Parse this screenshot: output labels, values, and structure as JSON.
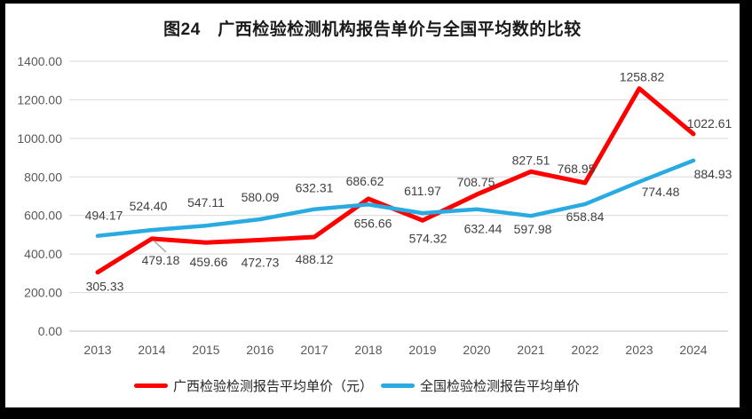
{
  "chart_data": {
    "type": "line",
    "title": "图24　广西检验检测机构报告单价与全国平均数的比较",
    "xlabel": "",
    "ylabel": "",
    "x": [
      "2013",
      "2014",
      "2015",
      "2016",
      "2017",
      "2018",
      "2019",
      "2020",
      "2021",
      "2022",
      "2023",
      "2024"
    ],
    "series": [
      {
        "name": "广西检验检测报告平均单价（元）",
        "color": "#FF0000",
        "stroke_width": 5,
        "values": [
          305.33,
          479.18,
          459.66,
          472.73,
          488.12,
          686.62,
          574.32,
          708.75,
          827.51,
          768.95,
          1258.82,
          1022.61
        ],
        "label_offsets": [
          [
            8,
            21
          ],
          [
            10,
            29
          ],
          [
            3,
            27
          ],
          [
            0,
            30
          ],
          [
            0,
            30
          ],
          [
            -4,
            -15
          ],
          [
            6,
            25
          ],
          [
            -1,
            -9
          ],
          [
            0,
            -8
          ],
          [
            -10,
            -11
          ],
          [
            3,
            -8
          ],
          [
            18,
            -7
          ]
        ]
      },
      {
        "name": "全国检验检测报告平均单价",
        "color": "#29ABE2",
        "stroke_width": 4.5,
        "values": [
          494.17,
          524.4,
          547.11,
          580.09,
          632.31,
          656.66,
          611.97,
          632.44,
          597.98,
          658.84,
          774.48,
          884.93
        ],
        "label_offsets": [
          [
            7,
            -18
          ],
          [
            -4,
            -22
          ],
          [
            0,
            -21
          ],
          [
            0,
            -20
          ],
          [
            0,
            -19
          ],
          [
            5,
            26
          ],
          [
            0,
            -20
          ],
          [
            7,
            27
          ],
          [
            2,
            20
          ],
          [
            0,
            19
          ],
          [
            24,
            16
          ],
          [
            22,
            20
          ]
        ]
      }
    ],
    "ylim": [
      0,
      1400
    ],
    "ytick_step": 200,
    "ytick_labels": [
      "0.00",
      "200.00",
      "400.00",
      "600.00",
      "800.00",
      "1000.00",
      "1200.00",
      "1400.00"
    ],
    "grid": true,
    "legend_position": "bottom",
    "leader_line": {
      "series": 0,
      "index": 1,
      "color": "#A6A6A6"
    }
  },
  "colors": {
    "frame": "#000000",
    "background": "#FFFFFF",
    "gridline": "#D9D9D9",
    "axis_line": "#BFBFBF",
    "tick_text": "#595959",
    "data_label_text": "#404040",
    "title_text": "#1A1A1A"
  }
}
